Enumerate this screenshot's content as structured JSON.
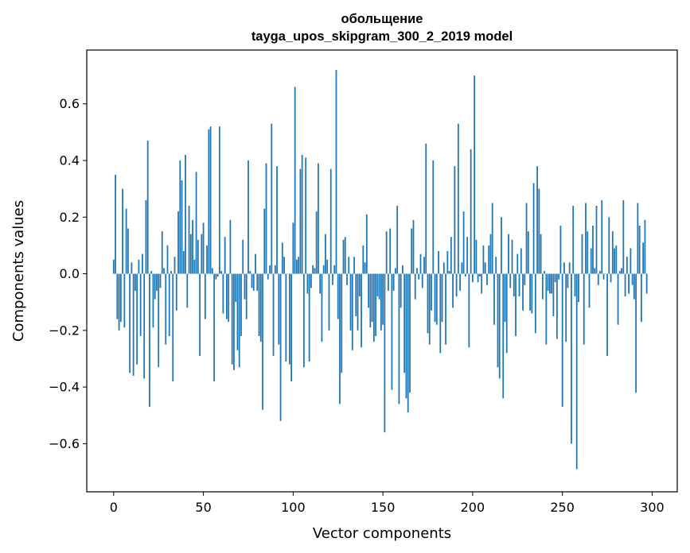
{
  "chart_data": {
    "type": "bar",
    "title": "обольщение",
    "subtitle": "tayga_upos_skipgram_300_2_2019 model",
    "xlabel": "Vector components",
    "ylabel": "Components values",
    "xlim": [
      -15,
      314
    ],
    "ylim": [
      -0.77,
      0.79
    ],
    "xticks": [
      0,
      50,
      100,
      150,
      200,
      250,
      300
    ],
    "yticks": [
      -0.6,
      -0.4,
      -0.2,
      0.0,
      0.2,
      0.4,
      0.6
    ],
    "ytick_labels": [
      "−0.6",
      "−0.4",
      "−0.2",
      "0.0",
      "0.2",
      "0.4",
      "0.6"
    ],
    "xtick_labels": [
      "0",
      "50",
      "100",
      "150",
      "200",
      "250",
      "300"
    ],
    "bar_color": "#1f77b4",
    "values": [
      0.05,
      0.35,
      -0.16,
      -0.2,
      -0.17,
      0.3,
      -0.19,
      0.23,
      0.16,
      -0.35,
      0.04,
      -0.36,
      -0.06,
      -0.32,
      0.05,
      -0.22,
      0.07,
      -0.37,
      0.26,
      0.47,
      -0.47,
      0.01,
      -0.19,
      -0.09,
      -0.06,
      -0.33,
      -0.05,
      0.15,
      0.02,
      -0.25,
      0.1,
      -0.22,
      0.01,
      -0.38,
      0.06,
      -0.13,
      0.22,
      0.4,
      0.33,
      0.08,
      0.42,
      -0.12,
      0.24,
      0.14,
      0.19,
      0.05,
      0.36,
      0.12,
      -0.29,
      0.14,
      0.18,
      -0.16,
      0.1,
      0.51,
      0.52,
      0.02,
      -0.38,
      -0.02,
      -0.01,
      0.52,
      0.01,
      -0.14,
      0.13,
      -0.16,
      -0.17,
      0.19,
      -0.32,
      -0.34,
      -0.1,
      -0.27,
      -0.33,
      -0.22,
      0.12,
      -0.09,
      -0.16,
      0.4,
      0.01,
      -0.05,
      -0.06,
      0.07,
      -0.06,
      -0.22,
      -0.24,
      -0.48,
      0.23,
      0.39,
      -0.02,
      0.03,
      0.53,
      -0.29,
      0.03,
      0.38,
      -0.25,
      -0.52,
      0.11,
      0.06,
      -0.31,
      0.0,
      -0.32,
      -0.38,
      0.18,
      0.66,
      0.05,
      0.06,
      0.37,
      0.42,
      -0.33,
      0.41,
      -0.07,
      -0.31,
      -0.05,
      0.03,
      0.02,
      0.22,
      0.39,
      -0.07,
      -0.24,
      0.03,
      0.14,
      0.05,
      -0.2,
      0.37,
      -0.04,
      0.03,
      0.72,
      -0.16,
      -0.46,
      -0.35,
      0.12,
      0.13,
      -0.04,
      0.06,
      -0.2,
      -0.27,
      0.06,
      -0.15,
      -0.2,
      -0.08,
      -0.26,
      0.1,
      0.04,
      0.21,
      -0.12,
      -0.19,
      -0.17,
      -0.24,
      -0.22,
      -0.08,
      -0.09,
      -0.2,
      -0.18,
      -0.56,
      0.15,
      -0.06,
      0.16,
      -0.41,
      -0.06,
      0.02,
      0.24,
      -0.46,
      -0.12,
      0.03,
      -0.35,
      -0.44,
      -0.49,
      -0.42,
      0.16,
      0.19,
      -0.09,
      0.02,
      -0.02,
      0.07,
      -0.05,
      0.06,
      0.46,
      -0.21,
      -0.25,
      -0.13,
      0.4,
      -0.17,
      -0.18,
      0.08,
      -0.28,
      -0.17,
      0.04,
      -0.25,
      0.08,
      0.01,
      0.13,
      -0.12,
      0.38,
      -0.08,
      0.53,
      -0.06,
      0.04,
      0.22,
      -0.01,
      0.13,
      -0.26,
      0.44,
      -0.03,
      0.7,
      0.12,
      -0.03,
      -0.01,
      -0.07,
      0.1,
      0.04,
      -0.04,
      0.1,
      0.14,
      0.25,
      -0.18,
      0.06,
      -0.33,
      -0.37,
      0.2,
      -0.44,
      -0.17,
      -0.28,
      0.14,
      -0.05,
      0.12,
      -0.08,
      -0.22,
      0.07,
      -0.08,
      0.09,
      -0.13,
      -0.04,
      0.25,
      0.15,
      -0.13,
      -0.14,
      0.32,
      -0.21,
      0.38,
      0.3,
      0.14,
      -0.09,
      0.01,
      -0.25,
      -0.06,
      -0.07,
      -0.07,
      -0.15,
      -0.03,
      -0.23,
      -0.02,
      0.17,
      -0.47,
      0.04,
      -0.24,
      -0.05,
      0.04,
      -0.6,
      0.24,
      -0.08,
      -0.69,
      -0.1,
      0.0,
      0.14,
      -0.25,
      0.25,
      0.15,
      -0.12,
      0.09,
      0.17,
      0.02,
      0.24,
      -0.04,
      0.01,
      0.26,
      -0.02,
      0.0,
      -0.29,
      0.2,
      -0.03,
      0.15,
      0.09,
      0.1,
      -0.18,
      0.01,
      0.02,
      0.26,
      -0.08,
      0.06,
      -0.07,
      0.09,
      -0.04,
      -0.09,
      -0.42,
      0.25,
      0.17,
      -0.17,
      0.11,
      0.19,
      -0.07
    ]
  }
}
